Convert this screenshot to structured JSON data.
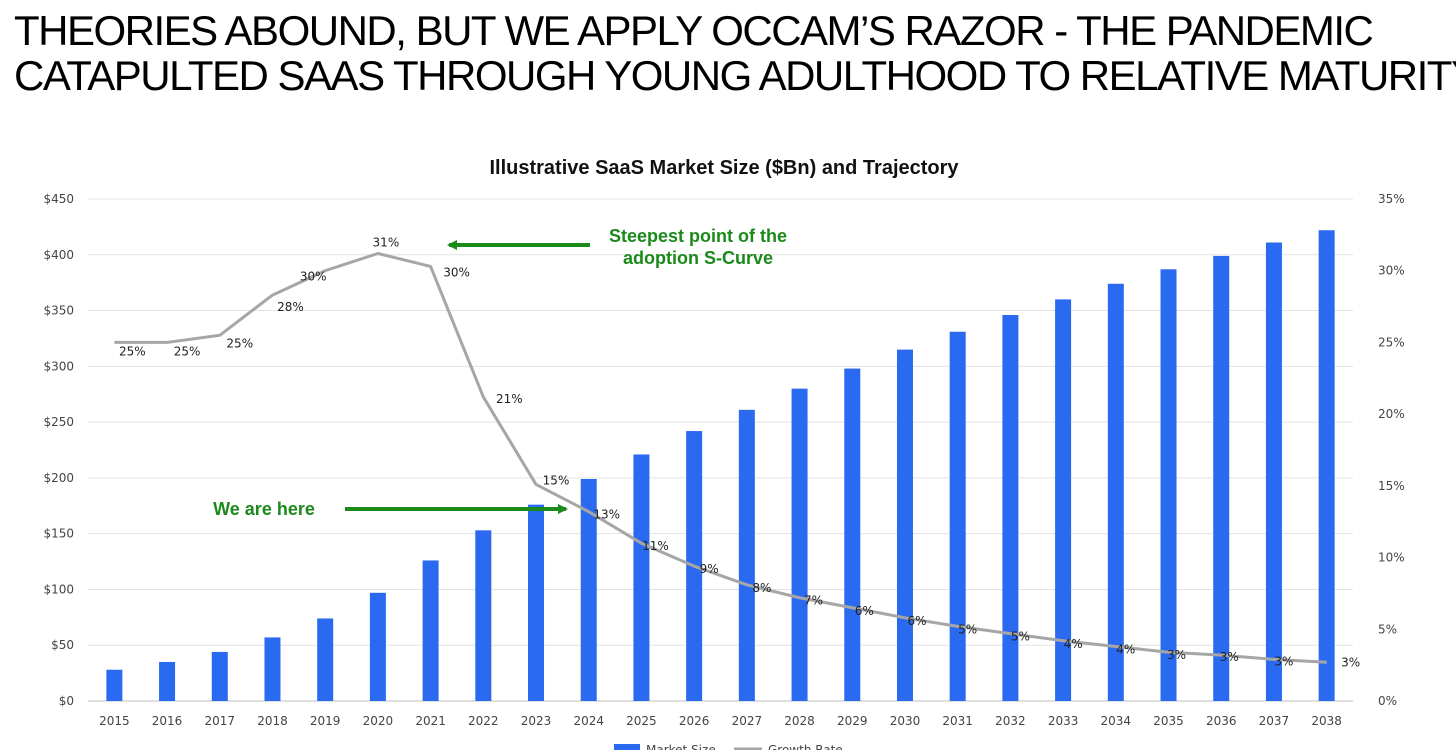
{
  "headline": {
    "line1": "THEORIES ABOUND, BUT WE APPLY OCCAM’S RAZOR - THE PANDEMIC",
    "line2": "CATAPULTED SAAS THROUGH YOUNG ADULTHOOD TO RELATIVE MATURITY"
  },
  "chart_data": {
    "type": "bar",
    "title": "Illustrative SaaS Market Size ($Bn) and Trajectory",
    "categories": [
      "2015",
      "2016",
      "2017",
      "2018",
      "2019",
      "2020",
      "2021",
      "2022",
      "2023",
      "2024",
      "2025",
      "2026",
      "2027",
      "2028",
      "2029",
      "2030",
      "2031",
      "2032",
      "2033",
      "2034",
      "2035",
      "2036",
      "2037",
      "2038"
    ],
    "series": [
      {
        "name": "Market Size",
        "type": "bar",
        "axis": "left",
        "color": "#2a6af0",
        "values": [
          28,
          35,
          44,
          57,
          74,
          97,
          126,
          153,
          176,
          199,
          221,
          242,
          261,
          280,
          298,
          315,
          331,
          346,
          360,
          374,
          387,
          399,
          411,
          422
        ]
      },
      {
        "name": "Growth Rate",
        "type": "line",
        "axis": "right",
        "color": "#a6a6a6",
        "values": [
          25,
          25,
          25.5,
          28.3,
          30,
          31.2,
          30.3,
          21.2,
          15.1,
          13.2,
          11,
          9.4,
          8.1,
          7.2,
          6.5,
          5.8,
          5.2,
          4.7,
          4.2,
          3.8,
          3.4,
          3.2,
          2.9,
          2.7
        ],
        "labels": [
          "25%",
          "25%",
          "25%",
          "28%",
          "30%",
          "31%",
          "30%",
          "21%",
          "15%",
          "13%",
          "11%",
          "9%",
          "8%",
          "7%",
          "6%",
          "6%",
          "5%",
          "5%",
          "4%",
          "4%",
          "3%",
          "3%",
          "3%",
          "3%"
        ]
      }
    ],
    "y_left": {
      "min": 0,
      "max": 450,
      "step": 50,
      "ticks": [
        "$0",
        "$50",
        "$100",
        "$150",
        "$200",
        "$250",
        "$300",
        "$350",
        "$400",
        "$450"
      ]
    },
    "y_right": {
      "min": 0,
      "max": 35,
      "step": 5,
      "ticks": [
        "0%",
        "5%",
        "10%",
        "15%",
        "20%",
        "25%",
        "30%",
        "35%"
      ]
    },
    "grid": true,
    "legend_position": "bottom",
    "annotations": [
      {
        "lines": [
          "Steepest point of the",
          "adoption S-Curve"
        ],
        "arrow_to": "2020",
        "arrow_direction": "left",
        "color": "#1b8a1b"
      },
      {
        "lines": [
          "We are here"
        ],
        "arrow_to": "2023",
        "arrow_direction": "right",
        "color": "#1b8a1b"
      }
    ]
  }
}
